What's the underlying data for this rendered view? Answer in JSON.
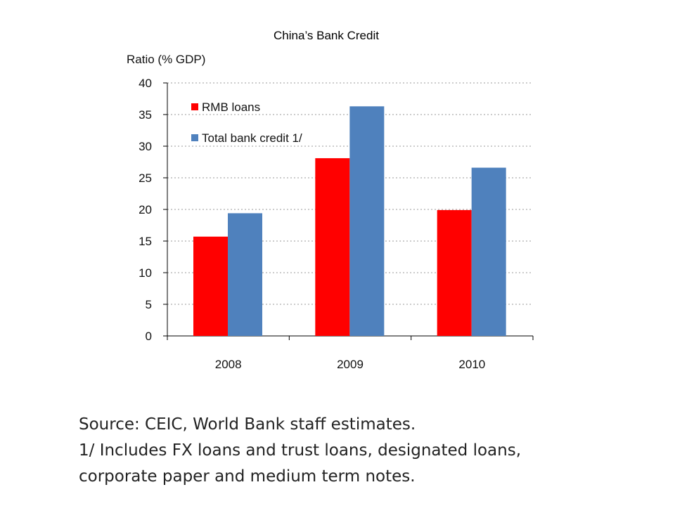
{
  "slide": {
    "title": "China’s Bank Credit"
  },
  "chart_data": {
    "type": "bar",
    "title": "",
    "xlabel": "",
    "ylabel": "Ratio (% GDP)",
    "categories": [
      "2008",
      "2009",
      "2010"
    ],
    "series": [
      {
        "name": "RMB loans",
        "values": [
          15.7,
          28.1,
          19.9
        ],
        "color": "#ff0000"
      },
      {
        "name": "Total bank credit 1/",
        "values": [
          19.4,
          36.3,
          26.6
        ],
        "color": "#4f81bd"
      }
    ],
    "ylim": [
      0,
      40
    ],
    "yticks": [
      0,
      5,
      10,
      15,
      20,
      25,
      30,
      35,
      40
    ],
    "grid": true,
    "legend_position": "top-left"
  },
  "footnotes": [
    "Source: CEIC, World Bank staff estimates.",
    "1/ Includes FX loans and trust loans, designated loans,",
    "corporate paper and medium term notes."
  ]
}
